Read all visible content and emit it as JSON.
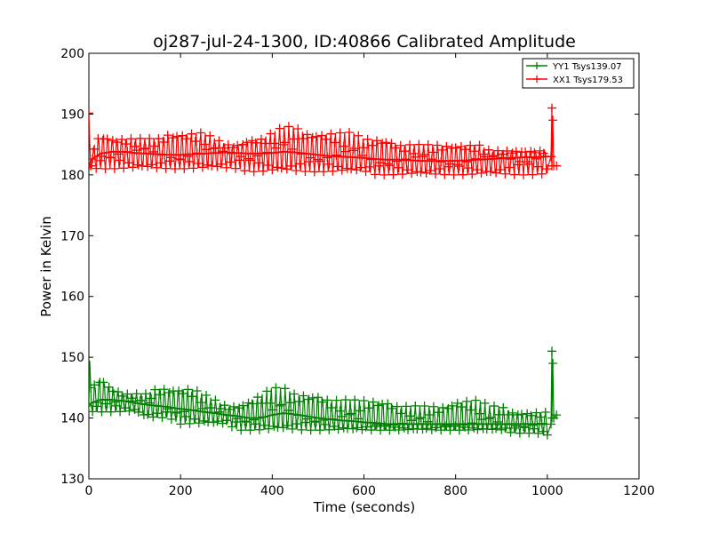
{
  "colors": {
    "background": "#ffffff",
    "axes": "#000000",
    "series_yy1": "#008000",
    "series_xx1": "#ff0000"
  },
  "chart_data": {
    "type": "line",
    "title": "oj287-jul-24-1300, ID:40866 Calibrated Amplitude",
    "xlabel": "Time (seconds)",
    "ylabel": "Power in Kelvin",
    "xlim": [
      0,
      1200
    ],
    "ylim": [
      130,
      200
    ],
    "xticks": [
      "0",
      "200",
      "400",
      "600",
      "800",
      "1000",
      "1200"
    ],
    "yticks": [
      "130",
      "140",
      "150",
      "160",
      "170",
      "180",
      "190",
      "200"
    ],
    "grid": false,
    "legend_position": "top-right",
    "marker": "+",
    "series": [
      {
        "name": "YY1 Tsys139.07",
        "color": "#008000",
        "x": [
          0,
          5,
          25,
          50,
          75,
          100,
          125,
          150,
          175,
          200,
          225,
          250,
          275,
          300,
          325,
          350,
          375,
          400,
          425,
          450,
          475,
          500,
          525,
          550,
          575,
          600,
          625,
          650,
          675,
          700,
          725,
          750,
          775,
          800,
          825,
          850,
          875,
          900,
          925,
          950,
          975,
          1000,
          1010,
          1020
        ],
        "low": [
          142,
          141,
          141,
          141,
          141,
          141,
          140,
          140,
          140,
          139,
          139,
          139,
          139,
          139,
          138,
          138,
          138,
          138,
          138,
          138,
          138,
          138,
          138,
          138,
          138,
          138,
          138,
          138,
          138,
          138,
          138,
          138,
          138,
          138,
          138,
          138,
          138,
          138,
          137.5,
          137.5,
          137.5,
          137,
          140,
          140.5
        ],
        "high": [
          153,
          145,
          147,
          145,
          144,
          144,
          144,
          145,
          145,
          145,
          145,
          144,
          143,
          142,
          142,
          143,
          144,
          145,
          145,
          144,
          144,
          144,
          143,
          143,
          143,
          143,
          143,
          143,
          142,
          142,
          142,
          142,
          142,
          143,
          143,
          143,
          142,
          142,
          141,
          141,
          141,
          141,
          151,
          140.5
        ],
        "trend": [
          142,
          142.5,
          143,
          143,
          142.8,
          142.5,
          142.2,
          142,
          141.8,
          141.5,
          141.3,
          141,
          140.8,
          140.5,
          140.3,
          140,
          140,
          140.5,
          140.8,
          140.6,
          140.3,
          140,
          139.8,
          139.6,
          139.5,
          139.3,
          139.2,
          139,
          139,
          139,
          139,
          139,
          139,
          139,
          139,
          139,
          139,
          139,
          139,
          139,
          139,
          139,
          139,
          140.5
        ]
      },
      {
        "name": "XX1 Tsys179.53",
        "color": "#ff0000",
        "x": [
          0,
          5,
          25,
          50,
          75,
          100,
          125,
          150,
          175,
          200,
          225,
          250,
          275,
          300,
          325,
          350,
          375,
          400,
          425,
          450,
          475,
          500,
          525,
          550,
          575,
          600,
          625,
          650,
          675,
          700,
          725,
          750,
          775,
          800,
          825,
          850,
          875,
          900,
          925,
          950,
          975,
          1000,
          1010,
          1020
        ],
        "low": [
          181,
          181,
          181,
          181,
          181,
          181,
          181,
          181,
          181,
          181,
          181,
          181,
          181,
          181,
          181,
          180.5,
          180.5,
          180.5,
          180.5,
          180.5,
          180.5,
          180.5,
          180.5,
          180.5,
          180.5,
          180.5,
          180,
          180,
          180,
          180,
          180,
          180,
          180,
          180,
          180,
          180,
          180,
          180,
          180,
          180,
          180,
          180,
          181.5,
          181.5
        ],
        "high": [
          190.5,
          184,
          187,
          186,
          186,
          186,
          186,
          186,
          187,
          187,
          187,
          187,
          186,
          185,
          185,
          186,
          186,
          187,
          188,
          188,
          187,
          187,
          187,
          187,
          187,
          186,
          186,
          186,
          185,
          185,
          185,
          185,
          185,
          185,
          185,
          185,
          184,
          184,
          184,
          184,
          184,
          184,
          191,
          181.5
        ],
        "trend": [
          181,
          182.5,
          183.5,
          183.8,
          183.8,
          183.6,
          183.5,
          183.4,
          183.3,
          183.3,
          183.4,
          183.5,
          183.6,
          183.7,
          183.6,
          183.5,
          183.5,
          183.6,
          183.8,
          183.7,
          183.5,
          183.3,
          183.1,
          183,
          182.9,
          182.8,
          182.6,
          182.5,
          182.5,
          182.4,
          182.3,
          182.3,
          182.3,
          182.3,
          182.4,
          182.5,
          182.6,
          182.7,
          182.8,
          182.9,
          182.9,
          183,
          183,
          181.5
        ]
      }
    ]
  }
}
